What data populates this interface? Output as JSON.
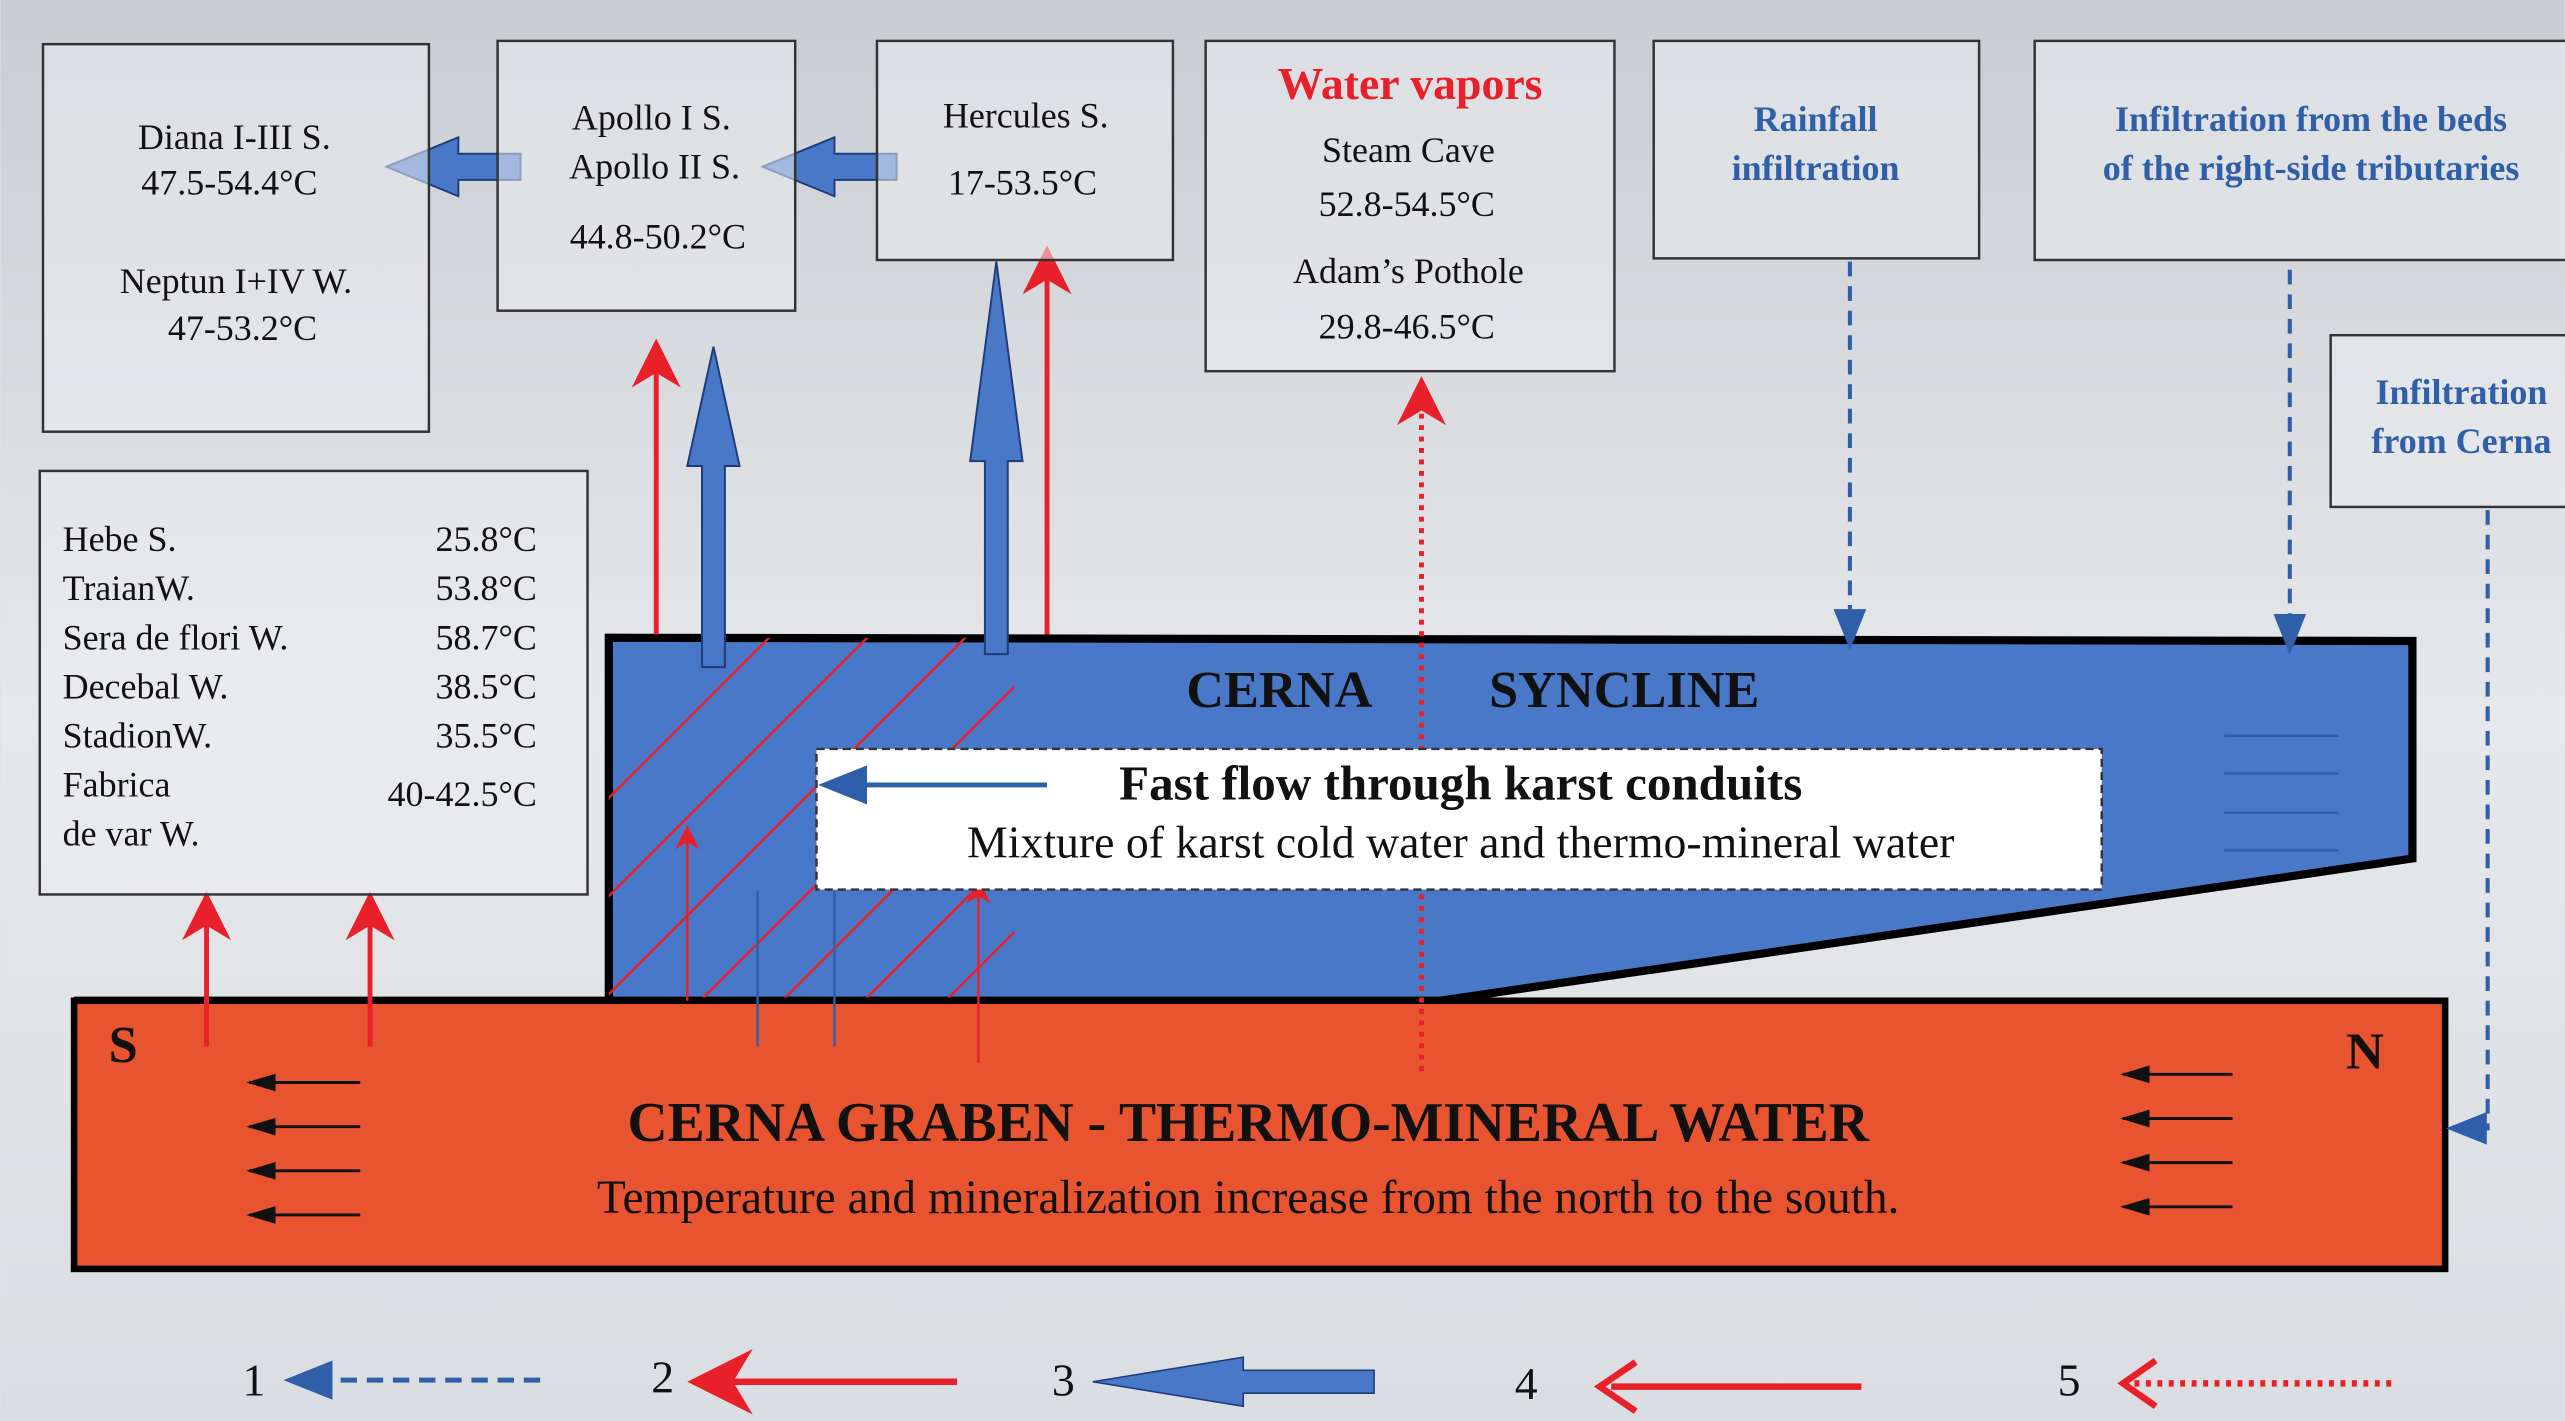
{
  "boxes": {
    "diana": {
      "lines": [
        "Diana I-III S.",
        "47.5-54.4°C",
        "Neptun I+IV W.",
        "47-53.2°C"
      ]
    },
    "apollo": {
      "lines": [
        "Apollo I S.",
        "Apollo II S.",
        "44.8-50.2°C"
      ]
    },
    "hercules": {
      "lines": [
        "Hercules S.",
        "17-53.5°C"
      ]
    },
    "water_vapors": {
      "title": "Water vapors",
      "lines": [
        "Steam Cave",
        "52.8-54.5°C",
        "Adam’s Pothole",
        "29.8-46.5°C"
      ]
    },
    "rainfall": {
      "lines": [
        "Rainfall",
        "infiltration"
      ]
    },
    "tributaries": {
      "lines": [
        "Infiltration from the beds",
        "of the right-side tributaries"
      ]
    },
    "cerna": {
      "lines": [
        "Infiltration",
        "from Cerna"
      ]
    }
  },
  "springs": {
    "rows": [
      {
        "name": [
          "Hebe S."
        ],
        "temp": "25.8°C"
      },
      {
        "name": [
          "TraianW."
        ],
        "temp": "53.8°C"
      },
      {
        "name": [
          "Sera de flori W."
        ],
        "temp": "58.7°C"
      },
      {
        "name": [
          "Decebal W."
        ],
        "temp": "38.5°C"
      },
      {
        "name": [
          "StadionW."
        ],
        "temp": "35.5°C"
      },
      {
        "name": [
          "Fabrica",
          "de var W."
        ],
        "temp": "40-42.5°C"
      }
    ]
  },
  "syncline": {
    "label_left": "CERNA",
    "label_right": "SYNCLINE",
    "flow_title": "Fast flow through karst conduits",
    "flow_subtitle": "Mixture of karst cold water and thermo-mineral water"
  },
  "graben": {
    "title": "CERNA GRABEN - THERMO-MINERAL WATER",
    "subtitle": "Temperature and mineralization increase from the north to the south.",
    "south": "S",
    "north": "N"
  },
  "legend": {
    "items": [
      "1",
      "2",
      "3",
      "4",
      "5"
    ]
  }
}
